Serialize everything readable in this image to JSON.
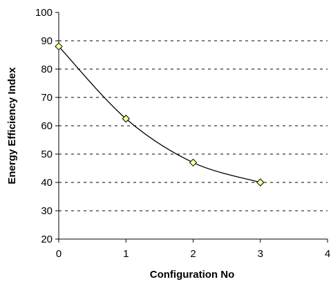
{
  "chart_data": {
    "type": "scatter",
    "title": "",
    "xlabel": "Configuration No",
    "ylabel": "Energy Efficiency Index",
    "xlim": [
      0,
      4
    ],
    "ylim": [
      20,
      100
    ],
    "xticks": [
      0,
      1,
      2,
      3,
      4
    ],
    "yticks": [
      20,
      30,
      40,
      50,
      60,
      70,
      80,
      90,
      100
    ],
    "grid": "horizontal dashed",
    "legend": "none",
    "smoothed_line": true,
    "series": [
      {
        "x": [
          0,
          1,
          2,
          3
        ],
        "y": [
          88,
          62.5,
          47,
          40
        ],
        "marker": "diamond",
        "marker_color": "#ffff99",
        "line_color": "#000000"
      }
    ]
  }
}
